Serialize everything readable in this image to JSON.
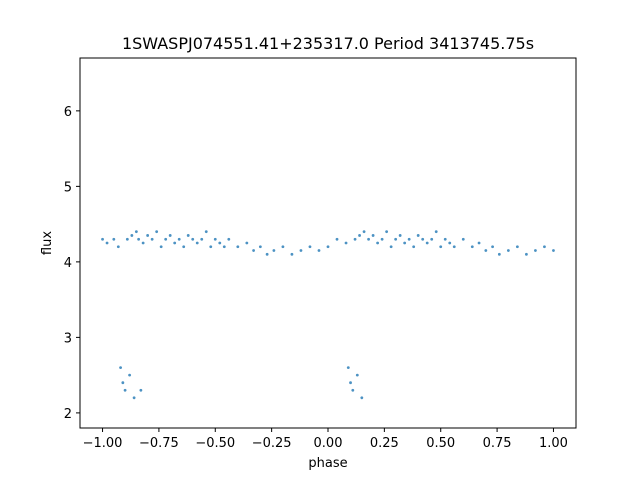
{
  "chart_data": {
    "type": "scatter",
    "title": "1SWASPJ074551.41+235317.0 Period 3413745.75s",
    "xlabel": "phase",
    "ylabel": "flux",
    "xlim": [
      -1.1,
      1.1
    ],
    "ylim": [
      1.8,
      6.7
    ],
    "xticks": [
      -1.0,
      -0.75,
      -0.5,
      -0.25,
      0.0,
      0.25,
      0.5,
      0.75,
      1.0
    ],
    "xtick_labels": [
      "−1.00",
      "−0.75",
      "−0.50",
      "−0.25",
      "0.00",
      "0.25",
      "0.50",
      "0.75",
      "1.00"
    ],
    "yticks": [
      2,
      3,
      4,
      5,
      6
    ],
    "ytick_labels": [
      "2",
      "3",
      "4",
      "5",
      "6"
    ],
    "grid": false,
    "marker_color": "#1f77b4",
    "series": [
      {
        "x": [
          -1.0,
          -0.98,
          -0.95,
          -0.93,
          -0.92,
          -0.91,
          -0.9,
          -0.89,
          -0.88,
          -0.87,
          -0.86,
          -0.85,
          -0.84,
          -0.83,
          -0.82,
          -0.8,
          -0.78,
          -0.76,
          -0.74,
          -0.72,
          -0.7,
          -0.68,
          -0.66,
          -0.64,
          -0.62,
          -0.6,
          -0.58,
          -0.56,
          -0.54,
          -0.52,
          -0.5,
          -0.48,
          -0.46,
          -0.44,
          -0.4,
          -0.36,
          -0.33,
          -0.3,
          -0.27,
          -0.24,
          -0.2,
          -0.16,
          -0.12,
          -0.08,
          -0.04,
          0.0,
          0.04,
          0.08,
          0.09,
          0.1,
          0.11,
          0.12,
          0.13,
          0.14,
          0.15,
          0.16,
          0.18,
          0.2,
          0.22,
          0.24,
          0.26,
          0.28,
          0.3,
          0.32,
          0.34,
          0.36,
          0.38,
          0.4,
          0.42,
          0.44,
          0.46,
          0.48,
          0.5,
          0.52,
          0.54,
          0.56,
          0.6,
          0.64,
          0.67,
          0.7,
          0.73,
          0.76,
          0.8,
          0.84,
          0.88,
          0.92,
          0.96,
          1.0
        ],
        "y": [
          4.3,
          4.25,
          4.3,
          4.2,
          2.6,
          2.4,
          2.3,
          4.3,
          2.5,
          4.35,
          2.2,
          4.4,
          4.3,
          2.3,
          4.25,
          4.35,
          4.3,
          4.4,
          4.2,
          4.3,
          4.35,
          4.25,
          4.3,
          4.2,
          4.35,
          4.3,
          4.25,
          4.3,
          4.4,
          4.2,
          4.3,
          4.25,
          4.2,
          4.3,
          4.2,
          4.25,
          4.15,
          4.2,
          4.1,
          4.15,
          4.2,
          4.1,
          4.15,
          4.2,
          4.15,
          4.2,
          4.3,
          4.25,
          2.6,
          2.4,
          2.3,
          4.3,
          2.5,
          4.35,
          2.2,
          4.4,
          4.3,
          4.35,
          4.25,
          4.3,
          4.4,
          4.2,
          4.3,
          4.35,
          4.25,
          4.3,
          4.2,
          4.35,
          4.3,
          4.25,
          4.3,
          4.4,
          4.2,
          4.3,
          4.25,
          4.2,
          4.3,
          4.2,
          4.25,
          4.15,
          4.2,
          4.1,
          4.15,
          4.2,
          4.1,
          4.15,
          4.2,
          4.15
        ]
      }
    ]
  }
}
